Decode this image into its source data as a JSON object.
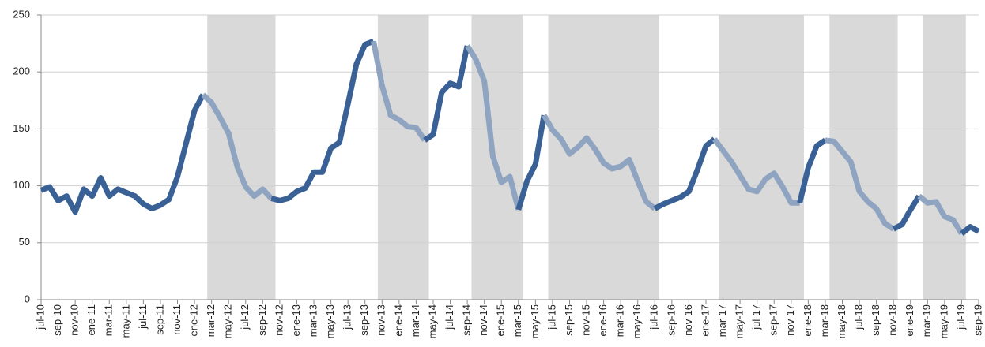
{
  "chart_data": {
    "type": "line",
    "categories": [
      "jul-10",
      null,
      "sep-10",
      null,
      "nov-10",
      null,
      "ene-11",
      null,
      "mar-11",
      null,
      "may-11",
      null,
      "jul-11",
      null,
      "sep-11",
      null,
      "nov-11",
      null,
      "ene-12",
      null,
      "mar-12",
      null,
      "may-12",
      null,
      "jul-12",
      null,
      "sep-12",
      null,
      "nov-12",
      null,
      "ene-13",
      null,
      "mar-13",
      null,
      "may-13",
      null,
      "jul-13",
      null,
      "sep-13",
      null,
      "nov-13",
      null,
      "ene-14",
      null,
      "mar-14",
      null,
      "may-14",
      null,
      "jul-14",
      null,
      "sep-14",
      null,
      "nov-14",
      null,
      "ene-15",
      null,
      "mar-15",
      null,
      "may-15",
      null,
      "jul-15",
      null,
      "sep-15",
      null,
      "nov-15",
      null,
      "ene-16",
      null,
      "mar-16",
      null,
      "may-16",
      null,
      "jul-16",
      null,
      "sep-16",
      null,
      "nov-16",
      null,
      "ene-17",
      null,
      "mar-17",
      null,
      "may-17",
      null,
      "jul-17",
      null,
      "sep-17",
      null,
      "nov-17",
      null,
      "ene-18",
      null,
      "mar-18",
      null,
      "may-18",
      null,
      "jul-18",
      null,
      "sep-18",
      null,
      "nov-18",
      null,
      "ene-19",
      null,
      "mar-19",
      null,
      "may-19",
      null,
      "jul-19",
      null,
      "sep-19"
    ],
    "values": [
      96,
      99,
      87,
      91,
      77,
      97,
      91,
      107,
      91,
      97,
      94,
      91,
      84,
      80,
      83,
      88,
      108,
      137,
      166,
      180,
      173,
      160,
      146,
      117,
      99,
      91,
      97,
      89,
      87,
      89,
      95,
      98,
      112,
      112,
      133,
      138,
      172,
      207,
      224,
      227,
      188,
      162,
      158,
      152,
      151,
      140,
      145,
      182,
      190,
      187,
      223,
      211,
      192,
      126,
      103,
      108,
      79,
      104,
      119,
      162,
      149,
      141,
      128,
      134,
      142,
      132,
      120,
      115,
      117,
      123,
      104,
      86,
      80,
      84,
      87,
      90,
      95,
      114,
      135,
      141,
      131,
      121,
      109,
      97,
      95,
      106,
      111,
      99,
      85,
      85,
      116,
      135,
      140,
      139,
      130,
      121,
      95,
      86,
      80,
      67,
      62,
      66,
      79,
      91,
      85,
      86,
      73,
      70,
      58,
      64,
      60
    ],
    "color": "#3a6195",
    "highlight_color": "#8fa4c0",
    "shade_color": "#d9d9d9",
    "shaded_periods": [
      [
        19,
        27
      ],
      [
        39,
        45
      ],
      [
        50,
        56
      ],
      [
        59,
        72
      ],
      [
        79,
        89
      ],
      [
        92,
        100
      ],
      [
        103,
        108
      ]
    ],
    "ylim": [
      0,
      250
    ],
    "yticks": [
      0,
      50,
      100,
      150,
      200,
      250
    ],
    "grid": true
  }
}
